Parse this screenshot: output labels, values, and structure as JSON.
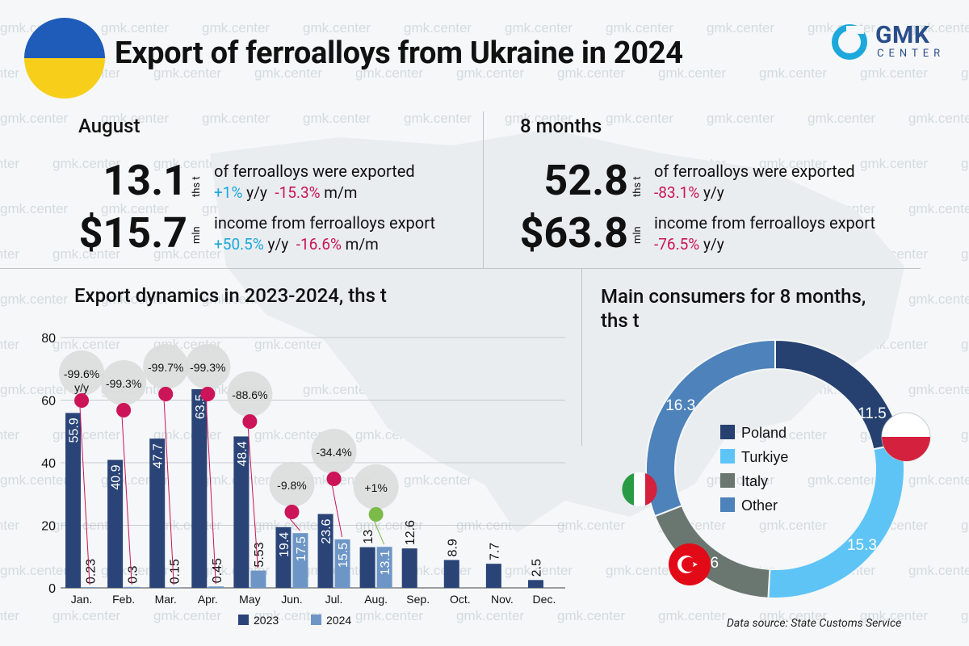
{
  "header": {
    "title": "Export of ferroalloys from Ukraine in 2024",
    "logo_main": "GMK",
    "logo_sub": "CENTER",
    "watermark": "gmk.center",
    "flag_colors": [
      "#1f5bb8",
      "#f7cf1a"
    ]
  },
  "august": {
    "heading": "August",
    "volume": {
      "value": "13.1",
      "unit": "ths t",
      "text": "of ferroalloys were exported",
      "yy": "+1%",
      "yy_suffix": "y/y",
      "mm": "-15.3%",
      "mm_suffix": "m/m"
    },
    "income": {
      "value": "$15.7",
      "unit": "mln",
      "text": "income from ferroalloys export",
      "yy": "+50.5%",
      "yy_suffix": "y/y",
      "mm": "-16.6%",
      "mm_suffix": "m/m"
    }
  },
  "eight_months": {
    "heading": "8 months",
    "volume": {
      "value": "52.8",
      "unit": "ths t",
      "text": "of ferroalloys were exported",
      "yy": "-83.1%",
      "yy_suffix": "y/y"
    },
    "income": {
      "value": "$63.8",
      "unit": "mln",
      "text": "income from ferroalloys export",
      "yy": "-76.5%",
      "yy_suffix": "y/y"
    }
  },
  "source": "Data source: State Customs Service",
  "colors": {
    "dark": "#2a4478",
    "light": "#6d96c6",
    "neg": "#cc1458",
    "pos": "#1da8dc",
    "green": "#7cba4a"
  },
  "chart_data": [
    {
      "type": "bar",
      "title": "Export dynamics in 2023-2024, ths t",
      "categories": [
        "Jan.",
        "Feb.",
        "Mar.",
        "Apr.",
        "May",
        "Jun.",
        "Jul.",
        "Aug.",
        "Sep.",
        "Oct.",
        "Nov.",
        "Dec."
      ],
      "series": [
        {
          "name": "2023",
          "values": [
            55.9,
            40.9,
            47.7,
            63.5,
            48.4,
            19.4,
            23.6,
            13,
            12.6,
            8.9,
            7.7,
            2.5
          ],
          "labels": [
            "55.9",
            "40.9",
            "47.7",
            "63.5",
            "48.4",
            "19.4",
            "23.6",
            "13",
            "12.6",
            "8.9",
            "7.7",
            "2.5"
          ]
        },
        {
          "name": "2024",
          "values": [
            0.23,
            0.3,
            0.15,
            0.45,
            5.53,
            17.5,
            15.5,
            13.1,
            null,
            null,
            null,
            null
          ],
          "labels": [
            "0.23",
            "0.3",
            "0.15",
            "0.45",
            "5.53",
            "17.5",
            "15.5",
            "13.1",
            "",
            "",
            "",
            ""
          ]
        }
      ],
      "yoy_changes": [
        "-99.6%",
        "-99.3%",
        "-99.7%",
        "-99.3%",
        "-88.6%",
        "-9.8%",
        "-34.4%",
        "+1%"
      ],
      "yoy_suffix": "y/y",
      "yticks": [
        0,
        20,
        40,
        60,
        80
      ],
      "ylim": [
        0,
        80
      ],
      "grid": true,
      "legend": "bottom"
    },
    {
      "type": "pie",
      "title": "Main consumers for 8 months, ths t",
      "labels": [
        "Poland",
        "Turkiye",
        "Italy",
        "Other"
      ],
      "values": [
        11.5,
        15.3,
        9.6,
        16.3
      ],
      "colors": [
        "#26416f",
        "#5ec4f6",
        "#6a7670",
        "#4d82ba"
      ],
      "legend": "center"
    }
  ]
}
